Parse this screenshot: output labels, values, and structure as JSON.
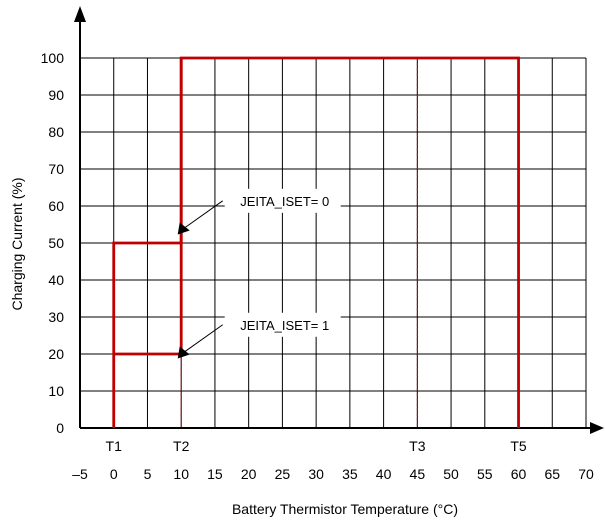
{
  "chart_data": {
    "type": "line",
    "xlabel": "Battery Thermistor Temperature (°C)",
    "ylabel": "Charging Current (%)",
    "xlim": [
      -5,
      70
    ],
    "ylim": [
      0,
      100
    ],
    "x_ticks": [
      -5,
      0,
      5,
      10,
      15,
      20,
      25,
      30,
      35,
      40,
      45,
      50,
      55,
      60,
      65,
      70
    ],
    "x_tick_labels": [
      "–5",
      "0",
      "5",
      "10",
      "15",
      "20",
      "25",
      "30",
      "35",
      "40",
      "45",
      "50",
      "55",
      "60",
      "65",
      "70"
    ],
    "y_ticks": [
      0,
      10,
      20,
      30,
      40,
      50,
      60,
      70,
      80,
      90,
      100
    ],
    "y_tick_labels": [
      "0",
      "10",
      "20",
      "30",
      "40",
      "50",
      "60",
      "70",
      "80",
      "90",
      "100"
    ],
    "grid": true,
    "series": [
      {
        "name": "JEITA_ISET= 0",
        "color": "#c00000",
        "x": [
          0,
          0,
          10,
          10,
          60,
          60
        ],
        "y": [
          0,
          50,
          50,
          100,
          100,
          0
        ]
      },
      {
        "name": "JEITA_ISET= 1",
        "color": "#c00000",
        "x": [
          0,
          10,
          10
        ],
        "y": [
          20,
          20,
          100
        ]
      }
    ],
    "markers": [
      {
        "label": "T1",
        "x": 0,
        "line": false
      },
      {
        "label": "T2",
        "x": 10,
        "line": true
      },
      {
        "label": "T3",
        "x": 45,
        "line": true
      },
      {
        "label": "T5",
        "x": 60,
        "line": false
      }
    ],
    "annotations": [
      {
        "text": "JEITA_ISET= 0",
        "x": 8,
        "y": 55
      },
      {
        "text": "JEITA_ISET= 1",
        "x": 8,
        "y": 21.5
      }
    ],
    "colors": {
      "grid": "#000000",
      "series": "#c00000",
      "marker_line": "#c00000"
    }
  }
}
